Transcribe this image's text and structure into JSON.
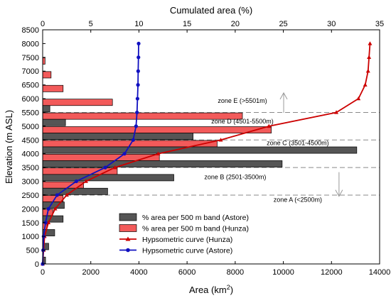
{
  "chart_data": {
    "type": "bar+line",
    "y_axis": {
      "label": "Elevation (m ASL)",
      "ylim": [
        0,
        8500
      ],
      "ticks": [
        0,
        500,
        1000,
        1500,
        2000,
        2500,
        3000,
        3500,
        4000,
        4500,
        5000,
        5500,
        6000,
        6500,
        7000,
        7500,
        8000,
        8500
      ]
    },
    "x_axis_bottom": {
      "label": "Area (km",
      "label_sup": "2",
      "label_end": ")",
      "xlim": [
        0,
        14000
      ],
      "ticks": [
        0,
        2000,
        4000,
        6000,
        8000,
        10000,
        12000,
        14000
      ]
    },
    "x_axis_top": {
      "label": "Cumulated area (%)",
      "xlim": [
        0,
        35
      ],
      "ticks": [
        0,
        5,
        10,
        15,
        20,
        25,
        30,
        35
      ]
    },
    "bands": [
      {
        "center": 250,
        "astore": 120,
        "hunza": 0
      },
      {
        "center": 750,
        "astore": 250,
        "hunza": 0
      },
      {
        "center": 1250,
        "astore": 500,
        "hunza": 180
      },
      {
        "center": 1750,
        "astore": 850,
        "hunza": 420
      },
      {
        "center": 2250,
        "astore": 900,
        "hunza": 850
      },
      {
        "center": 2750,
        "astore": 2700,
        "hunza": 1700
      },
      {
        "center": 3250,
        "astore": 5450,
        "hunza": 3100
      },
      {
        "center": 3750,
        "astore": 9950,
        "hunza": 4850
      },
      {
        "center": 4250,
        "astore": 13050,
        "hunza": 7250
      },
      {
        "center": 4750,
        "astore": 6250,
        "hunza": 9500
      },
      {
        "center": 5250,
        "astore": 950,
        "hunza": 8300
      },
      {
        "center": 5750,
        "astore": 300,
        "hunza": 2900
      },
      {
        "center": 6250,
        "astore": 0,
        "hunza": 850
      },
      {
        "center": 6750,
        "astore": 0,
        "hunza": 350
      },
      {
        "center": 7250,
        "astore": 0,
        "hunza": 100
      },
      {
        "center": 7750,
        "astore": 0,
        "hunza": 0
      }
    ],
    "series": [
      {
        "name": "Hypsometric curve (Hunza)",
        "color": "#cc0000",
        "points": [
          [
            0,
            0
          ],
          [
            0.1,
            500
          ],
          [
            0.2,
            1000
          ],
          [
            0.6,
            1500
          ],
          [
            1.3,
            2000
          ],
          [
            2.5,
            2500
          ],
          [
            4.5,
            3000
          ],
          [
            7.5,
            3500
          ],
          [
            12,
            4000
          ],
          [
            18.5,
            4500
          ],
          [
            23.5,
            5000
          ],
          [
            30.5,
            5500
          ],
          [
            32.8,
            6000
          ],
          [
            33.5,
            6500
          ],
          [
            33.8,
            7000
          ],
          [
            33.9,
            7500
          ],
          [
            34,
            8000
          ]
        ]
      },
      {
        "name": "Hypsometric curve (Astore)",
        "color": "#1010c0",
        "points": [
          [
            0,
            0
          ],
          [
            0.05,
            500
          ],
          [
            0.1,
            1000
          ],
          [
            0.3,
            1500
          ],
          [
            0.6,
            2000
          ],
          [
            1.5,
            2500
          ],
          [
            3.5,
            3000
          ],
          [
            6.5,
            3500
          ],
          [
            8.5,
            4000
          ],
          [
            9.4,
            4500
          ],
          [
            9.7,
            5000
          ],
          [
            9.8,
            5500
          ],
          [
            9.85,
            6000
          ],
          [
            9.9,
            6500
          ],
          [
            9.92,
            7000
          ],
          [
            9.95,
            7500
          ],
          [
            9.97,
            8000
          ]
        ]
      }
    ],
    "bar_series": [
      {
        "name": "% area per 500 m band (Astore)",
        "color": "#555555"
      },
      {
        "name": "% area per 500 m band (Hunza)",
        "color": "#f25a5a"
      }
    ],
    "zone_lines": [
      2500,
      3500,
      4500,
      5500
    ],
    "zones": [
      {
        "label": "zone E (>5501m)",
        "x": 8300,
        "y": 5850,
        "arrow": "up"
      },
      {
        "label": "zone D (4501-5500m)",
        "x": 8300,
        "y": 5100
      },
      {
        "label": "zone C (3501-4500m)",
        "x": 10600,
        "y": 4320
      },
      {
        "label": "zone B (2501-3500m)",
        "x": 8000,
        "y": 3080
      },
      {
        "label": "zone A (<2500m)",
        "x": 10600,
        "y": 2250,
        "arrow": "down"
      }
    ],
    "legend_position": "lower-center"
  }
}
